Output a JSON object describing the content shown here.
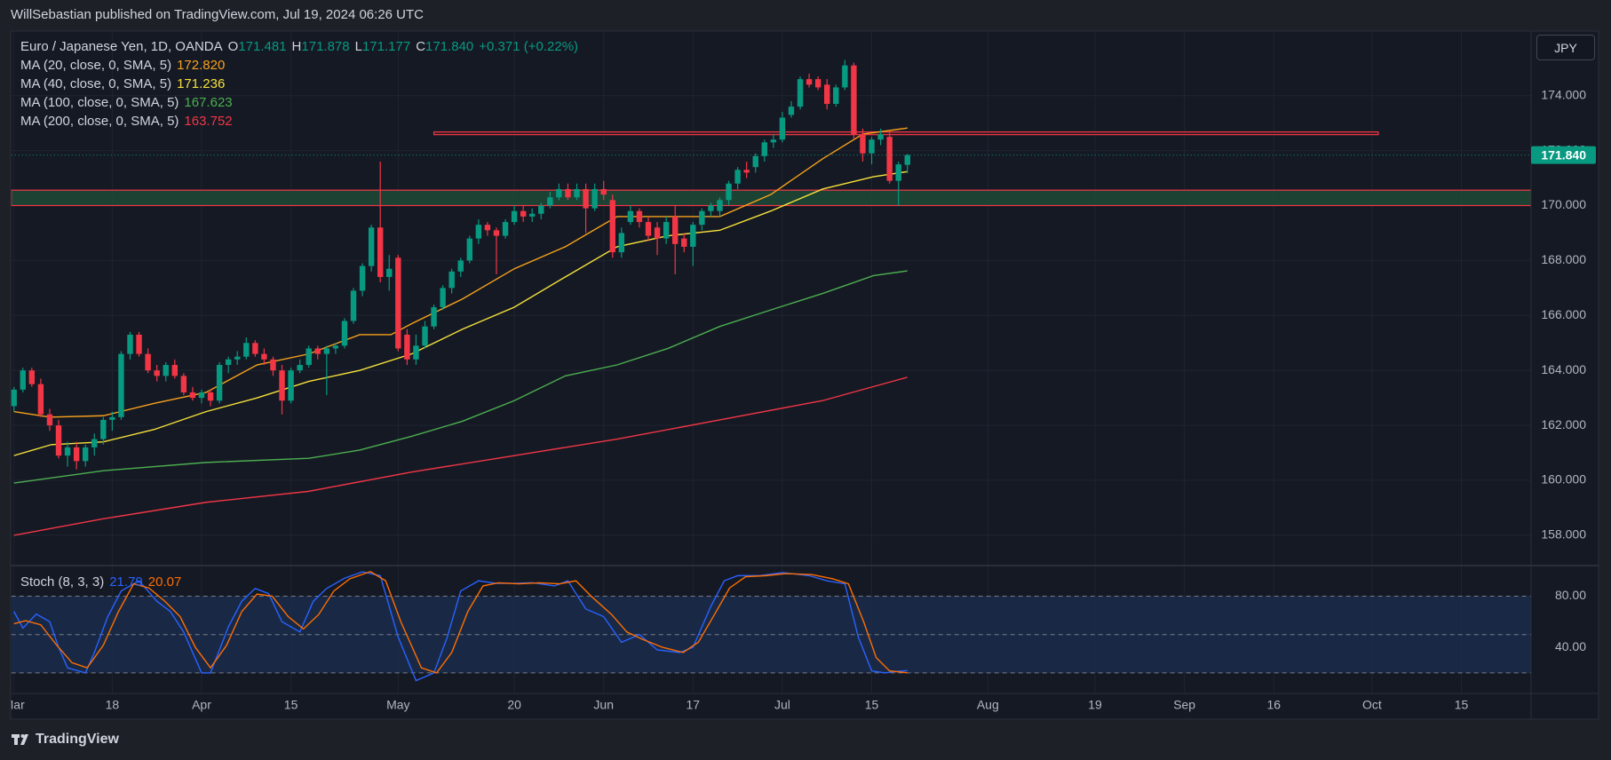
{
  "header": {
    "text": "WillSebastian published on TradingView.com, Jul 19, 2024 06:26 UTC"
  },
  "footer": {
    "brand": "TradingView"
  },
  "chart_data": {
    "type": "candlestick",
    "symbol": "Euro / Japanese Yen, 1D, OANDA",
    "ohlc_fields": [
      {
        "key": "O",
        "value": "171.481"
      },
      {
        "key": "H",
        "value": "171.878"
      },
      {
        "key": "L",
        "value": "171.177"
      },
      {
        "key": "C",
        "value": "171.840"
      }
    ],
    "change": "+0.371 (+0.22%)",
    "currency": "JPY",
    "up_color": "#089981",
    "down_color": "#f23645",
    "candles": [
      [
        162.7,
        163.4,
        162.5,
        163.3
      ],
      [
        163.3,
        164.1,
        163.2,
        164.0
      ],
      [
        164.0,
        164.1,
        163.4,
        163.5
      ],
      [
        163.5,
        163.7,
        162.3,
        162.4
      ],
      [
        162.4,
        162.6,
        161.8,
        162.0
      ],
      [
        162.0,
        162.2,
        160.8,
        160.9
      ],
      [
        160.9,
        161.4,
        160.5,
        161.2
      ],
      [
        161.2,
        161.4,
        160.4,
        160.7
      ],
      [
        160.7,
        161.3,
        160.5,
        161.2
      ],
      [
        161.2,
        161.7,
        160.9,
        161.5
      ],
      [
        161.5,
        162.3,
        161.3,
        162.2
      ],
      [
        162.2,
        162.5,
        161.8,
        162.3
      ],
      [
        162.3,
        164.7,
        162.2,
        164.6
      ],
      [
        164.6,
        165.4,
        164.4,
        165.3
      ],
      [
        165.3,
        165.4,
        164.5,
        164.6
      ],
      [
        164.6,
        164.8,
        163.9,
        164.0
      ],
      [
        164.0,
        164.2,
        163.6,
        163.8
      ],
      [
        163.8,
        164.3,
        163.6,
        164.2
      ],
      [
        164.2,
        164.4,
        163.7,
        163.8
      ],
      [
        163.8,
        163.9,
        163.1,
        163.2
      ],
      [
        163.2,
        163.4,
        162.9,
        163.0
      ],
      [
        163.0,
        163.3,
        162.8,
        163.2
      ],
      [
        163.2,
        163.3,
        162.7,
        162.9
      ],
      [
        162.9,
        164.3,
        162.8,
        164.2
      ],
      [
        164.2,
        164.5,
        163.9,
        164.4
      ],
      [
        164.4,
        164.7,
        164.2,
        164.5
      ],
      [
        164.5,
        165.2,
        164.4,
        165.0
      ],
      [
        165.0,
        165.1,
        164.5,
        164.6
      ],
      [
        164.6,
        164.8,
        164.2,
        164.4
      ],
      [
        164.4,
        164.5,
        163.8,
        164.0
      ],
      [
        164.0,
        164.2,
        162.4,
        162.9
      ],
      [
        162.9,
        164.1,
        162.8,
        164.0
      ],
      [
        164.0,
        164.4,
        163.9,
        164.2
      ],
      [
        164.2,
        164.9,
        164.1,
        164.8
      ],
      [
        164.8,
        164.9,
        164.4,
        164.6
      ],
      [
        164.6,
        164.9,
        163.1,
        164.8
      ],
      [
        164.8,
        165.0,
        164.6,
        164.9
      ],
      [
        164.9,
        165.9,
        164.8,
        165.8
      ],
      [
        165.8,
        167.0,
        165.7,
        166.9
      ],
      [
        166.9,
        167.9,
        166.7,
        167.8
      ],
      [
        167.8,
        169.3,
        167.6,
        169.2
      ],
      [
        169.2,
        171.6,
        167.2,
        167.4
      ],
      [
        167.4,
        168.2,
        166.9,
        167.7
      ],
      [
        168.1,
        168.2,
        164.7,
        164.8
      ],
      [
        165.3,
        165.5,
        164.2,
        164.4
      ],
      [
        164.4,
        165.3,
        164.2,
        164.9
      ],
      [
        164.9,
        165.8,
        164.8,
        165.6
      ],
      [
        165.6,
        166.4,
        165.5,
        166.3
      ],
      [
        166.3,
        167.1,
        166.2,
        167.0
      ],
      [
        167.0,
        167.7,
        166.8,
        167.6
      ],
      [
        167.6,
        168.1,
        167.4,
        168.0
      ],
      [
        168.0,
        168.9,
        167.9,
        168.8
      ],
      [
        168.8,
        169.5,
        168.6,
        169.3
      ],
      [
        169.3,
        169.4,
        168.9,
        169.1
      ],
      [
        169.1,
        169.2,
        167.5,
        168.9
      ],
      [
        168.9,
        169.5,
        168.8,
        169.4
      ],
      [
        169.4,
        170.0,
        169.3,
        169.8
      ],
      [
        169.8,
        170.0,
        169.4,
        169.6
      ],
      [
        169.6,
        169.9,
        169.4,
        169.7
      ],
      [
        169.7,
        170.1,
        169.5,
        170.0
      ],
      [
        170.0,
        170.5,
        169.9,
        170.3
      ],
      [
        170.3,
        170.8,
        170.2,
        170.6
      ],
      [
        170.6,
        170.8,
        170.2,
        170.3
      ],
      [
        170.3,
        170.8,
        170.2,
        170.6
      ],
      [
        170.6,
        170.8,
        169.0,
        169.9
      ],
      [
        169.9,
        170.8,
        169.8,
        170.6
      ],
      [
        170.6,
        170.9,
        170.2,
        170.4
      ],
      [
        170.2,
        170.4,
        168.1,
        168.3
      ],
      [
        168.3,
        169.2,
        168.1,
        169.0
      ],
      [
        169.4,
        170.0,
        169.3,
        169.8
      ],
      [
        169.8,
        169.9,
        169.2,
        169.4
      ],
      [
        169.4,
        169.6,
        168.7,
        168.9
      ],
      [
        169.2,
        169.4,
        168.2,
        168.8
      ],
      [
        168.8,
        169.6,
        168.6,
        169.4
      ],
      [
        169.6,
        170.0,
        167.5,
        168.6
      ],
      [
        168.8,
        169.0,
        168.3,
        168.5
      ],
      [
        168.5,
        169.4,
        167.8,
        169.3
      ],
      [
        169.3,
        169.9,
        169.1,
        169.8
      ],
      [
        169.8,
        170.1,
        169.6,
        170.0
      ],
      [
        169.8,
        170.3,
        169.6,
        170.2
      ],
      [
        170.2,
        170.9,
        170.0,
        170.8
      ],
      [
        170.8,
        171.4,
        170.6,
        171.3
      ],
      [
        171.3,
        171.6,
        171.0,
        171.2
      ],
      [
        171.4,
        171.9,
        171.2,
        171.8
      ],
      [
        171.8,
        172.4,
        171.6,
        172.3
      ],
      [
        172.3,
        172.6,
        172.1,
        172.4
      ],
      [
        172.4,
        173.4,
        172.3,
        173.2
      ],
      [
        173.3,
        173.8,
        173.2,
        173.6
      ],
      [
        173.6,
        174.7,
        173.5,
        174.6
      ],
      [
        174.6,
        174.8,
        174.3,
        174.4
      ],
      [
        174.6,
        174.7,
        174.2,
        174.3
      ],
      [
        174.4,
        174.6,
        173.5,
        173.7
      ],
      [
        173.7,
        174.4,
        173.6,
        174.3
      ],
      [
        174.3,
        175.3,
        174.2,
        175.1
      ],
      [
        175.1,
        175.2,
        172.4,
        172.6
      ],
      [
        172.6,
        172.8,
        171.6,
        171.9
      ],
      [
        171.9,
        172.5,
        171.5,
        172.4
      ],
      [
        172.4,
        172.8,
        172.2,
        172.6
      ],
      [
        172.5,
        172.7,
        170.8,
        170.9
      ],
      [
        170.9,
        171.6,
        170.0,
        171.5
      ],
      [
        171.481,
        171.878,
        171.177,
        171.84
      ]
    ],
    "xlim": [
      -0.3,
      169.8
    ],
    "xticks": [
      {
        "value": 0,
        "label": "Mar"
      },
      {
        "value": 11,
        "label": "18"
      },
      {
        "value": 21,
        "label": "Apr"
      },
      {
        "value": 31,
        "label": "15"
      },
      {
        "value": 43,
        "label": "May"
      },
      {
        "value": 56,
        "label": "20"
      },
      {
        "value": 66,
        "label": "Jun"
      },
      {
        "value": 76,
        "label": "17"
      },
      {
        "value": 86,
        "label": "Jul"
      },
      {
        "value": 96,
        "label": "15"
      },
      {
        "value": 109,
        "label": "Aug"
      },
      {
        "value": 121,
        "label": "19"
      },
      {
        "value": 131,
        "label": "Sep"
      },
      {
        "value": 141,
        "label": "16"
      },
      {
        "value": 152,
        "label": "Oct"
      },
      {
        "value": 162,
        "label": "15"
      }
    ],
    "ylim": [
      156.93,
      176.35
    ],
    "yticks": [
      {
        "value": 158,
        "label": "158.000"
      },
      {
        "value": 160,
        "label": "160.000"
      },
      {
        "value": 162,
        "label": "162.000"
      },
      {
        "value": 164,
        "label": "164.000"
      },
      {
        "value": 166,
        "label": "166.000"
      },
      {
        "value": 168,
        "label": "168.000"
      },
      {
        "value": 170,
        "label": "170.000"
      },
      {
        "value": 172,
        "label": "172.000"
      },
      {
        "value": 174,
        "label": "174.000"
      }
    ],
    "grid": true,
    "last_price": {
      "value": 171.84,
      "label": "171.840"
    },
    "zones": [
      {
        "y": [
          170.0,
          170.56
        ],
        "color": "#1d4a37",
        "border": "#f23645"
      },
      {
        "y": [
          172.58,
          172.68
        ],
        "x": [
          47,
          152.7
        ],
        "color": "#3a1d24",
        "border": "#f23645"
      }
    ],
    "series": [
      {
        "name": "MA (20, close, 0, SMA, 5)",
        "value_label": "172.820",
        "color": "#f7a21b",
        "x": [
          0,
          4,
          10,
          15.7,
          21.5,
          27.2,
          33,
          38.7,
          42.2,
          44.5,
          50.2,
          56,
          61.7,
          67.5,
          73.2,
          79,
          84.7,
          90.5,
          95,
          100
        ],
        "values": [
          162.5,
          162.3,
          162.35,
          162.8,
          163.2,
          164.2,
          164.6,
          165.3,
          165.3,
          165.7,
          166.6,
          167.7,
          168.5,
          169.6,
          169.6,
          169.6,
          170.4,
          171.7,
          172.6,
          172.82
        ]
      },
      {
        "name": "MA (40, close, 0, SMA, 5)",
        "value_label": "171.236",
        "color": "#f5e13a",
        "x": [
          0,
          4.2,
          10,
          15.7,
          21.5,
          27.2,
          33,
          38.7,
          44.5,
          50.2,
          56,
          61.7,
          67.5,
          73.2,
          79,
          84.7,
          90.5,
          96.2,
          100
        ],
        "values": [
          160.9,
          161.3,
          161.4,
          161.85,
          162.5,
          163.0,
          163.6,
          164.0,
          164.6,
          165.5,
          166.3,
          167.4,
          168.5,
          168.9,
          169.1,
          169.8,
          170.6,
          171.05,
          171.236
        ]
      },
      {
        "name": "MA (100, close, 0, SMA, 5)",
        "value_label": "167.623",
        "color": "#4caf50",
        "x": [
          0,
          10,
          21.5,
          33,
          38.7,
          44.5,
          50.2,
          56,
          61.7,
          67.5,
          73.2,
          79,
          84.7,
          90.5,
          96.2,
          100
        ],
        "values": [
          159.9,
          160.35,
          160.65,
          160.8,
          161.1,
          161.6,
          162.15,
          162.9,
          163.8,
          164.2,
          164.8,
          165.6,
          166.2,
          166.8,
          167.45,
          167.623
        ]
      },
      {
        "name": "MA (200, close, 0, SMA, 5)",
        "value_label": "163.752",
        "color": "#f23645",
        "x": [
          0,
          10,
          21.5,
          33,
          44.5,
          56,
          67.5,
          79,
          90.5,
          100
        ],
        "values": [
          158.0,
          158.6,
          159.2,
          159.6,
          160.3,
          160.9,
          161.5,
          162.2,
          162.9,
          163.752
        ]
      }
    ],
    "stoch": {
      "name": "Stoch (8, 3, 3)",
      "ylim": [
        4,
        103.2
      ],
      "yticks": [
        {
          "value": 80,
          "label": "80.00"
        },
        {
          "value": 40,
          "label": "40.00"
        }
      ],
      "levels": [
        80,
        50,
        20
      ],
      "band": [
        20,
        80
      ],
      "band_color": "#1a2d4d",
      "series": [
        {
          "value_label": "21.79",
          "color": "#2962ff",
          "x": [
            0,
            1,
            2.5,
            4,
            5,
            6,
            8,
            9,
            10.5,
            12,
            14,
            16,
            17.5,
            19,
            21,
            22,
            24,
            25.5,
            27,
            28.5,
            30,
            32,
            33.5,
            35,
            37,
            39,
            41,
            43,
            45,
            47,
            48.5,
            50,
            52,
            54,
            56,
            58,
            60.5,
            62,
            64,
            66,
            68,
            70,
            72,
            74.5,
            76,
            78,
            79.5,
            81,
            83.5,
            86,
            89,
            91,
            93,
            94.5,
            96,
            97.5,
            98.5,
            100
          ],
          "values": [
            68,
            55,
            66,
            60,
            40,
            24,
            20,
            36,
            64,
            84,
            92,
            76,
            68,
            52,
            20,
            20,
            56,
            76,
            86,
            82,
            60,
            52,
            76,
            86,
            94,
            99,
            96,
            48,
            14,
            20,
            48,
            84,
            92,
            90,
            90,
            90.5,
            88,
            92,
            70,
            64,
            44,
            50,
            38,
            36,
            40,
            72,
            92,
            96,
            96,
            98.4,
            96,
            92,
            89.6,
            48,
            21.6,
            20,
            21,
            21.79
          ]
        },
        {
          "value_label": "20.07",
          "color": "#ff6d00",
          "x": [
            0,
            1.3,
            3,
            4.8,
            6.5,
            8.2,
            10,
            11.7,
            13.4,
            15.1,
            16.9,
            18.6,
            20.3,
            22,
            23.8,
            25.5,
            27.2,
            28.9,
            30.7,
            32.4,
            34.1,
            35.8,
            37.6,
            39.9,
            41.6,
            43.3,
            45.6,
            47.3,
            49,
            50.8,
            52.5,
            54.2,
            56.5,
            58.8,
            61.1,
            62.9,
            64.6,
            66.9,
            68.6,
            70.3,
            72.6,
            74.9,
            76.6,
            78.4,
            80.1,
            81.9,
            84.2,
            86.4,
            89.3,
            91.6,
            93.4,
            95.1,
            96.5,
            98,
            100
          ],
          "values": [
            58.4,
            60.8,
            57.6,
            41.6,
            28,
            24,
            41.6,
            68,
            89.6,
            86.4,
            76,
            64,
            40,
            24,
            41.6,
            68,
            81.6,
            80,
            64,
            54.4,
            65.6,
            84,
            93.6,
            99.2,
            92,
            60,
            24,
            20,
            36,
            68,
            88,
            90.4,
            89.6,
            90.4,
            89.6,
            92,
            80,
            65.6,
            52,
            46.4,
            40,
            36,
            44,
            65.6,
            86.4,
            95.2,
            96,
            97.6,
            96.8,
            93.6,
            89.6,
            60,
            32,
            21.6,
            20.07
          ]
        }
      ]
    }
  }
}
